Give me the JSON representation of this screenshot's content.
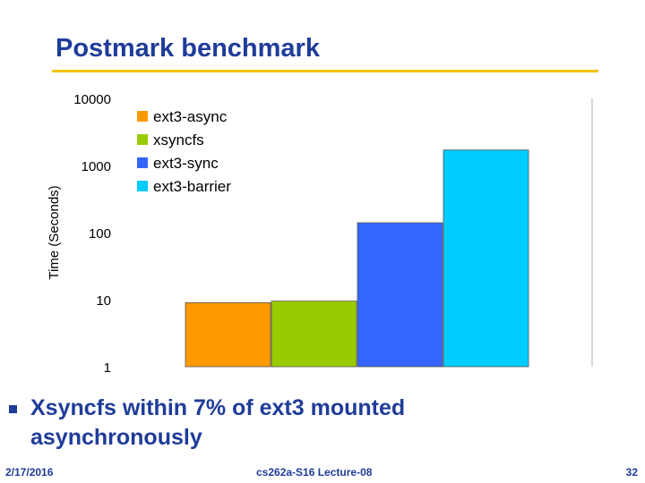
{
  "slide": {
    "title": "Postmark benchmark",
    "bullet": "Xsyncfs within 7% of ext3 mounted asynchronously",
    "footer_left": "2/17/2016",
    "footer_center": "cs262a-S16 Lecture-08",
    "footer_right": "32"
  },
  "chart_data": {
    "type": "bar",
    "title": "",
    "xlabel": "",
    "ylabel": "Time (Seconds)",
    "y_scale": "log",
    "ylim": [
      1,
      10000
    ],
    "y_ticks": [
      "10000",
      "1000",
      "100",
      "10",
      "1"
    ],
    "y_tick_values": [
      10000,
      1000,
      100,
      10,
      1
    ],
    "legend_position": "top-left",
    "grid": false,
    "series": [
      {
        "name": "ext3-async",
        "value": 9,
        "color": "#ff9900"
      },
      {
        "name": "xsyncfs",
        "value": 9.5,
        "color": "#99cc00"
      },
      {
        "name": "ext3-sync",
        "value": 140,
        "color": "#3366ff"
      },
      {
        "name": "ext3-barrier",
        "value": 1700,
        "color": "#00ccff"
      }
    ]
  }
}
